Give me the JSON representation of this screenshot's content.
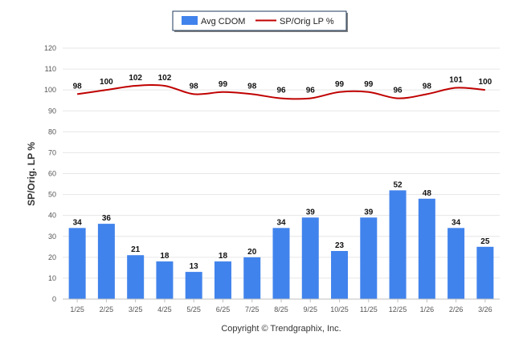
{
  "chart_data": {
    "type": "bar",
    "categories": [
      "1/25",
      "2/25",
      "3/25",
      "4/25",
      "5/25",
      "6/25",
      "7/25",
      "8/25",
      "9/25",
      "10/25",
      "11/25",
      "12/25",
      "1/26",
      "2/26",
      "3/26"
    ],
    "series": [
      {
        "name": "Avg CDOM",
        "kind": "bar",
        "color": "#4183ec",
        "values": [
          34,
          36,
          21,
          18,
          13,
          18,
          20,
          34,
          39,
          23,
          39,
          52,
          48,
          34,
          25
        ]
      },
      {
        "name": "SP/Orig LP %",
        "kind": "line",
        "color": "#c00000",
        "values": [
          98,
          100,
          102,
          102,
          98,
          99,
          98,
          96,
          96,
          99,
          99,
          96,
          98,
          101,
          100
        ]
      }
    ],
    "title": "",
    "xlabel": "",
    "ylabel": "SP/Orig. LP %",
    "ylim": [
      0,
      120
    ],
    "yticks": [
      0,
      10,
      20,
      30,
      40,
      50,
      60,
      70,
      80,
      90,
      100,
      110,
      120
    ],
    "grid": true,
    "legend_position": "top-center"
  },
  "footer": {
    "copyright": "Copyright © Trendgraphix, Inc."
  }
}
